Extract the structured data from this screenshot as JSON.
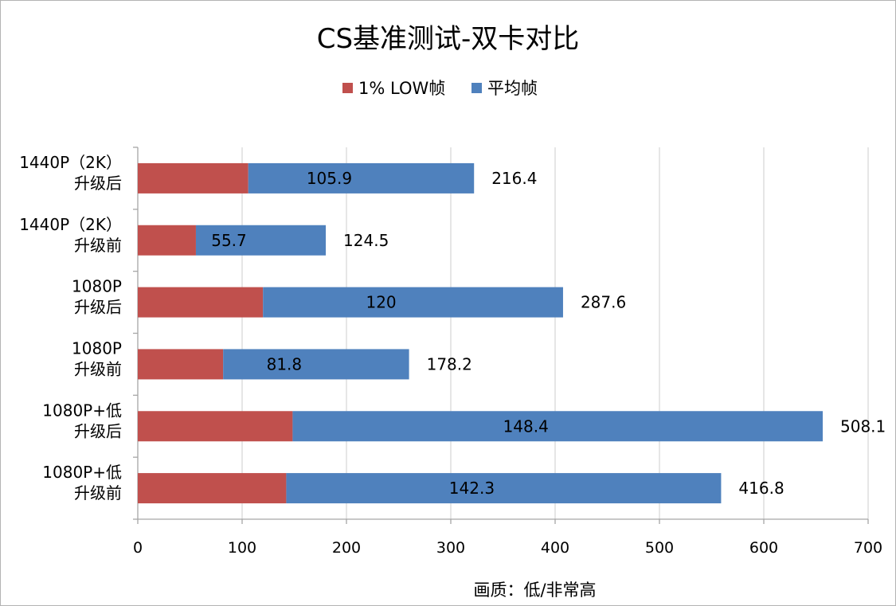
{
  "chart_data": {
    "type": "bar",
    "orientation": "horizontal",
    "stacked": true,
    "title": "CS基准测试-双卡对比",
    "xlabel": "画质：低/非常高",
    "ylabel": "",
    "xlim": [
      0,
      700
    ],
    "xticks": [
      0,
      100,
      200,
      300,
      400,
      500,
      600,
      700
    ],
    "grid": true,
    "legend_position": "top",
    "categories": [
      [
        "1440P（2K）",
        "升级后"
      ],
      [
        "1440P（2K）",
        "升级前"
      ],
      [
        "1080P",
        "升级后"
      ],
      [
        "1080P",
        "升级前"
      ],
      [
        "1080P+低",
        "升级后"
      ],
      [
        "1080P+低",
        "升级前"
      ]
    ],
    "series": [
      {
        "name": "1% LOW帧",
        "color": "#c0504d",
        "values": [
          105.9,
          55.7,
          120,
          81.8,
          148.4,
          142.3
        ]
      },
      {
        "name": "平均帧",
        "color": "#4f81bd",
        "values": [
          216.4,
          124.5,
          287.6,
          178.2,
          508.1,
          416.8
        ]
      }
    ]
  }
}
